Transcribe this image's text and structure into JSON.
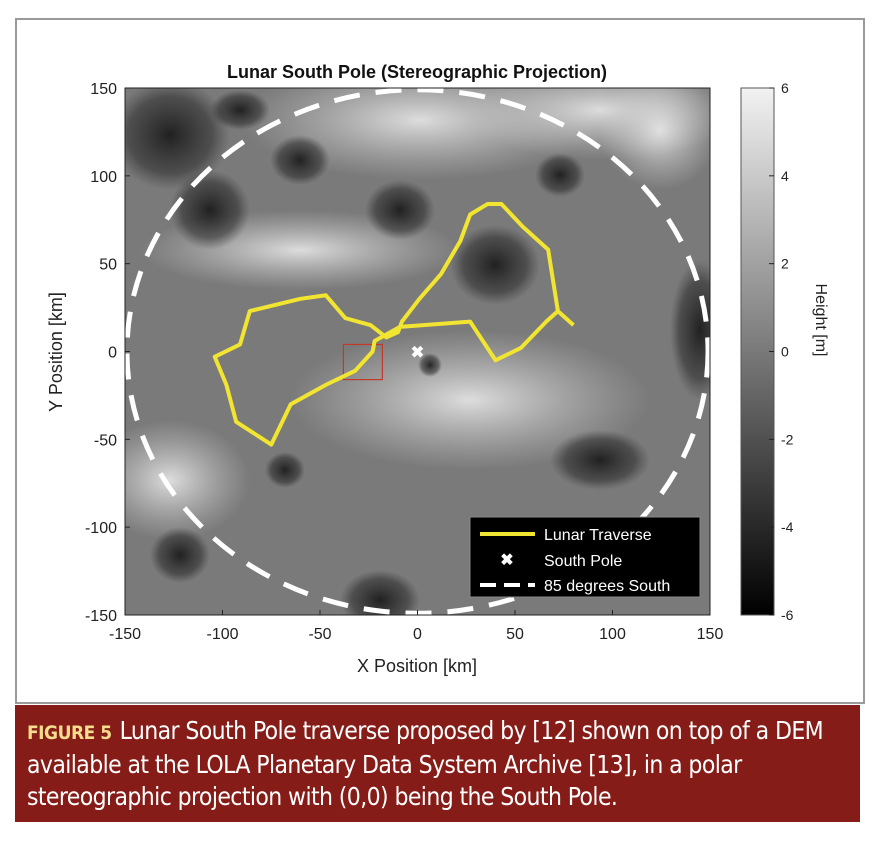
{
  "chart_data": {
    "type": "line",
    "title": "Lunar South Pole (Stereographic Projection)",
    "xlabel": "X Position [km]",
    "ylabel": "Y Position [km]",
    "xlim": [
      -150,
      150
    ],
    "ylim": [
      -150,
      150
    ],
    "xticks": [
      -150,
      -100,
      -50,
      0,
      50,
      100,
      150
    ],
    "yticks": [
      -150,
      -100,
      -50,
      0,
      50,
      100,
      150
    ],
    "background": "grayscale DEM height map",
    "colorbar": {
      "label": "Height [m]",
      "range": [
        -6,
        6
      ],
      "ticks": [
        -6,
        -4,
        -2,
        0,
        2,
        4,
        6
      ],
      "colormap": "gray"
    },
    "legend_position": "bottom-right",
    "series": [
      {
        "name": "Lunar Traverse",
        "type": "line",
        "color": "#f2e531",
        "x": [
          80,
          72,
          67,
          54,
          43,
          36,
          27,
          22,
          12,
          1,
          -8,
          -10,
          -16,
          -24,
          -37,
          -47,
          -60,
          -86,
          -91,
          -104,
          -98,
          -93,
          -75,
          -65,
          -47,
          -32,
          -23,
          -22,
          -9,
          27,
          40,
          53,
          66,
          72
        ],
        "y": [
          15,
          23,
          58,
          71,
          84,
          84,
          78,
          63,
          44,
          30,
          17,
          11,
          8,
          15,
          19,
          32,
          30,
          23,
          4,
          -3,
          -19,
          -40,
          -53,
          -30,
          -19,
          -11,
          0,
          6,
          14,
          17,
          -5,
          2,
          17,
          23
        ]
      },
      {
        "name": "South Pole",
        "type": "marker",
        "marker": "x",
        "color": "#ffffff",
        "x": [
          0
        ],
        "y": [
          0
        ]
      },
      {
        "name": "85 degrees South",
        "type": "dashed-circle",
        "color": "#ffffff",
        "center": [
          0,
          0
        ],
        "radius_km": 149
      }
    ],
    "annotations": [
      {
        "type": "rectangle",
        "color": "#c0392b",
        "x": [
          -38,
          -18
        ],
        "y": [
          -16,
          4
        ]
      }
    ]
  },
  "caption": {
    "label": "FIGURE 5",
    "text": "Lunar South Pole traverse proposed by [12] shown on top of a DEM available at the LOLA Planetary Data System Archive [13], in a polar stereographic projection with (0,0) being the South Pole."
  }
}
